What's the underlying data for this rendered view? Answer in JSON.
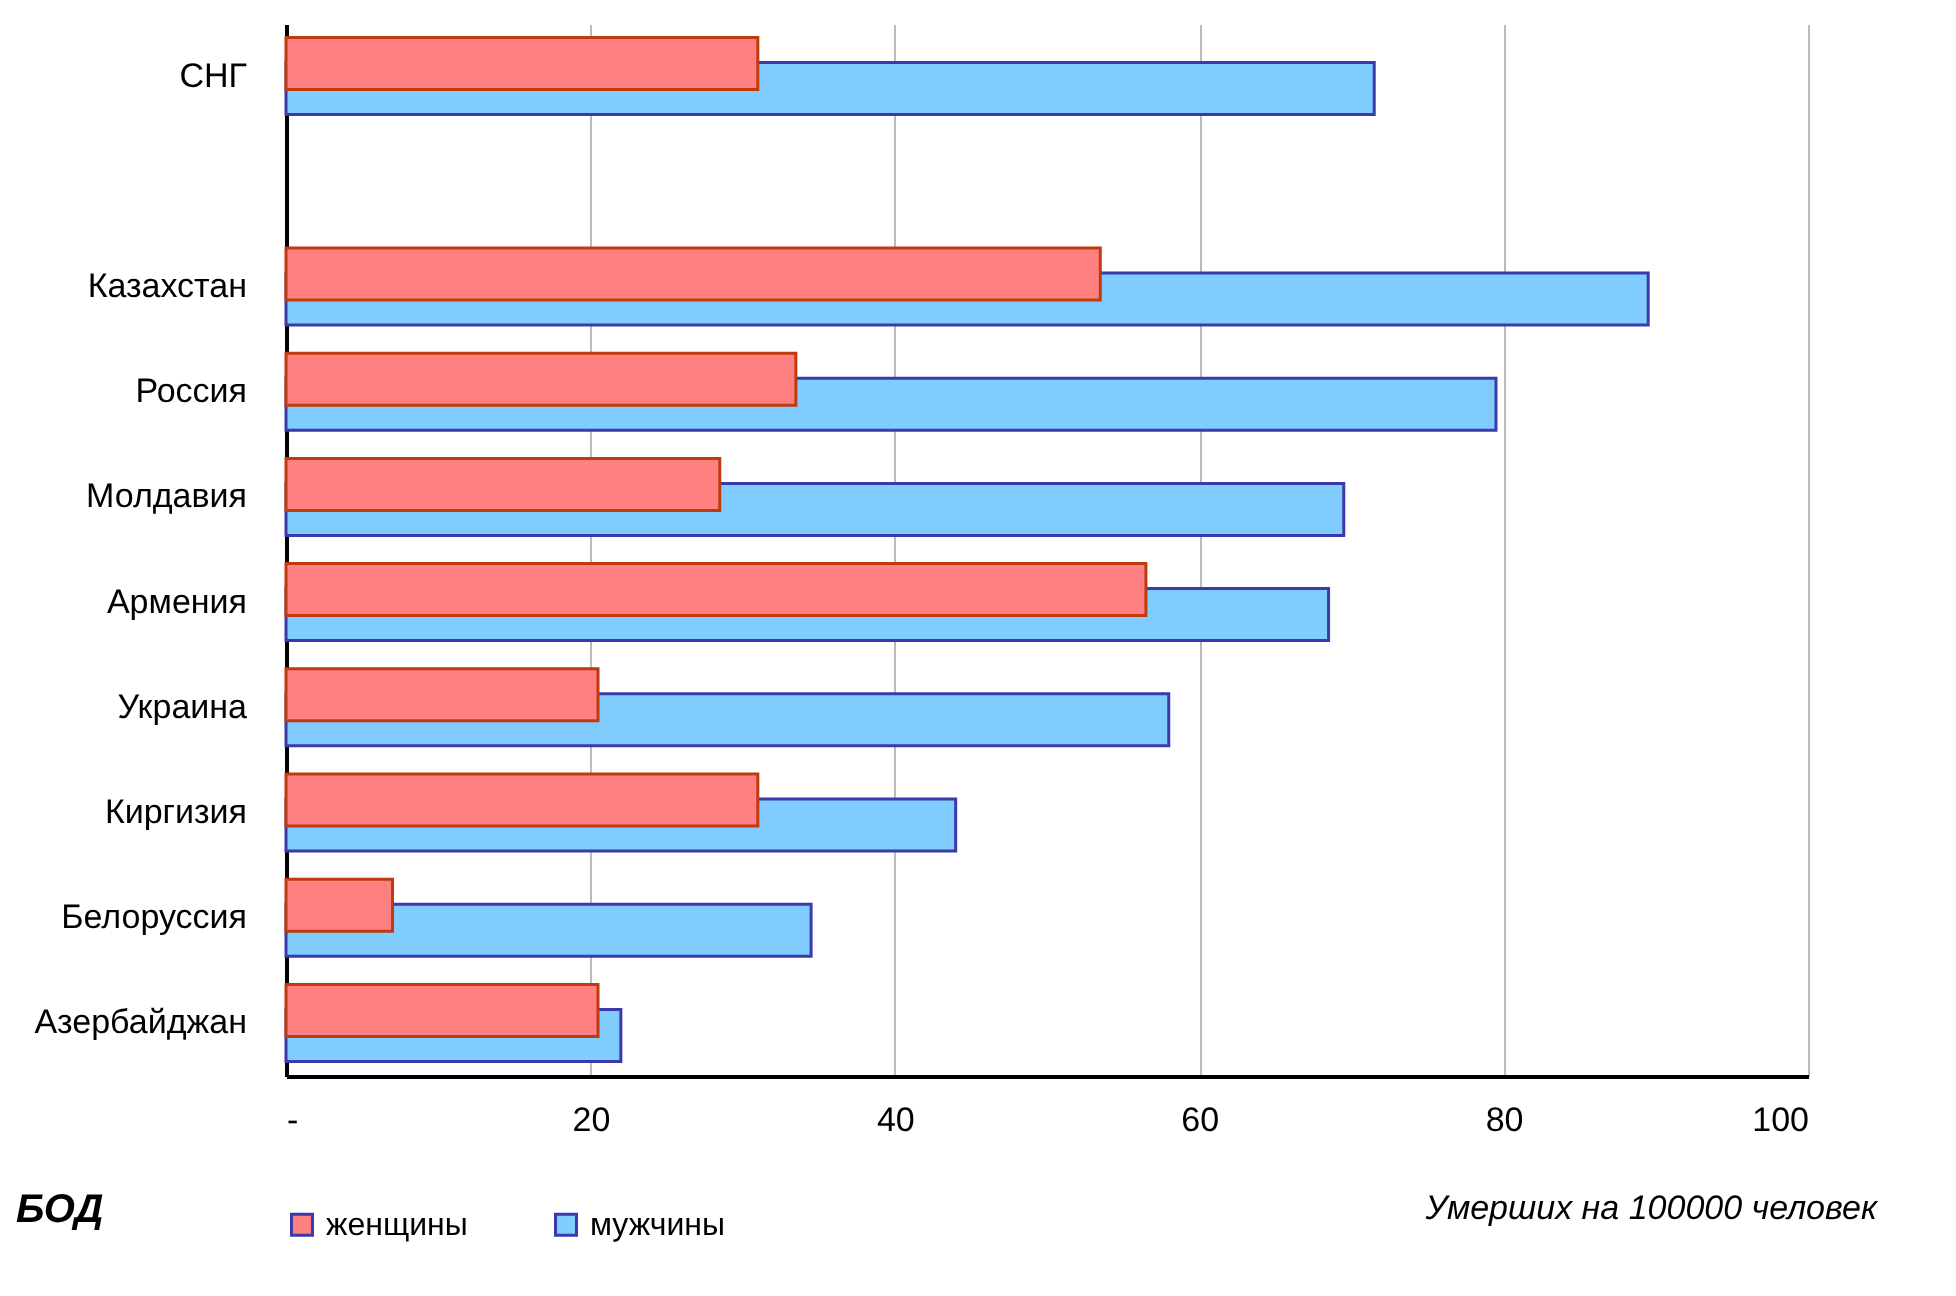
{
  "chart_data": {
    "type": "bar",
    "orientation": "horizontal",
    "title": "БОД",
    "xlabel": "Умерших на 100000 человек",
    "categories": [
      "СНГ",
      null,
      "Казахстан",
      "Россия",
      "Молдавия",
      "Армения",
      "Украина",
      "Киргизия",
      "Белоруссия",
      "Азербайджан"
    ],
    "series": [
      {
        "name": "женщины",
        "color": "#ff8080",
        "values": [
          31,
          null,
          53.5,
          33.5,
          28.5,
          56.5,
          20.5,
          31,
          7,
          20.5
        ]
      },
      {
        "name": "мужчины",
        "color": "#80ccff",
        "values": [
          71.5,
          null,
          89.5,
          79.5,
          69.5,
          68.5,
          58,
          44,
          34.5,
          22
        ]
      }
    ],
    "xlim": [
      0,
      100
    ],
    "xticks": [
      {
        "value": 0,
        "label": "-"
      },
      20,
      40,
      60,
      80,
      100
    ],
    "grid": "x",
    "legend": "bottom"
  }
}
